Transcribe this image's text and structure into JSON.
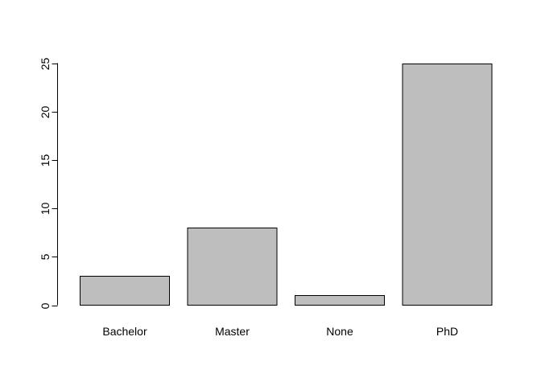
{
  "chart_data": {
    "type": "bar",
    "title": "",
    "xlabel": "",
    "ylabel": "",
    "categories": [
      "Bachelor",
      "Master",
      "None",
      "PhD"
    ],
    "values": [
      3,
      8,
      1,
      25
    ],
    "ylim": [
      0,
      25
    ],
    "yticks": [
      0,
      5,
      10,
      15,
      20,
      25
    ],
    "grid": false,
    "bar_color": "#bebebe",
    "border_color": "#000000"
  }
}
